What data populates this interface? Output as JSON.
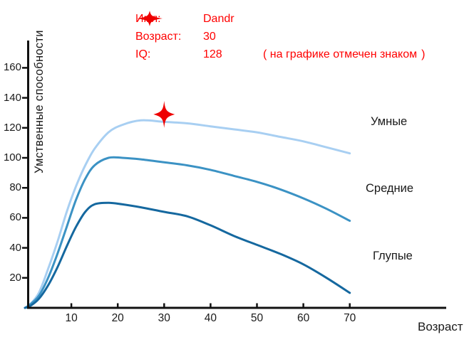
{
  "header": {
    "text_color": "#ff0000",
    "rows": [
      {
        "label": "Имя:",
        "value": "Dandr"
      },
      {
        "label": "Возраст:",
        "value": "30"
      },
      {
        "label": "IQ:",
        "value": "128"
      }
    ],
    "iq_note": {
      "prefix": "( на графике отмечен знаком",
      "suffix": ")"
    }
  },
  "chart_data": {
    "type": "line",
    "title": "",
    "xlabel": "Возраст",
    "ylabel": "Умственные способности",
    "xlim": [
      0,
      91
    ],
    "ylim": [
      0,
      177
    ],
    "grid": false,
    "x_ticks": [
      10,
      20,
      30,
      40,
      50,
      60,
      70
    ],
    "y_ticks": [
      20,
      40,
      60,
      80,
      100,
      120,
      140,
      160
    ],
    "axis_color": "#111111",
    "x": [
      0,
      1,
      3,
      5,
      7,
      9,
      11,
      13,
      15,
      18,
      21,
      25,
      30,
      35,
      40,
      45,
      50,
      55,
      60,
      65,
      70
    ],
    "series": [
      {
        "name": "Умные",
        "color": "#a8cff2",
        "values": [
          0,
          2,
          10,
          26,
          44,
          64,
          81,
          95,
          106,
          117,
          122,
          125,
          124,
          123,
          121,
          119,
          117,
          114,
          111,
          107,
          103
        ]
      },
      {
        "name": "Средние",
        "color": "#3b92c4",
        "values": [
          0,
          2,
          8,
          20,
          36,
          54,
          72,
          86,
          95,
          100,
          100,
          99,
          97,
          95,
          92,
          88,
          84,
          79,
          73,
          66,
          58
        ]
      },
      {
        "name": "Глупые",
        "color": "#15689f",
        "values": [
          0,
          1,
          6,
          15,
          27,
          41,
          54,
          64,
          69,
          70,
          69,
          67,
          64,
          61,
          55,
          48,
          42,
          36,
          29,
          20,
          10
        ]
      }
    ],
    "marker": {
      "age": 30,
      "iq": 128,
      "color": "#ee0000",
      "symbol": "four-point-star"
    }
  }
}
